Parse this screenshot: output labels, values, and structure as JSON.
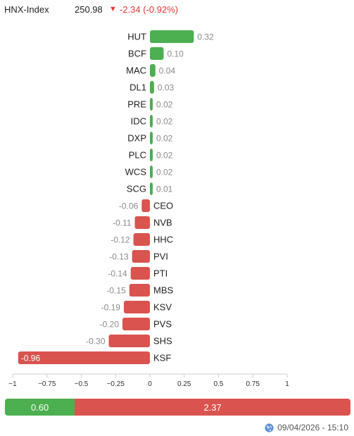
{
  "header": {
    "index_name": "HNX-Index",
    "value": "250.98",
    "arrow": "▼",
    "change": "-2.34 (-0.92%)",
    "change_color": "#e53935"
  },
  "chart_data": {
    "type": "bar",
    "orientation": "horizontal",
    "categories": [
      "HUT",
      "BCF",
      "MAC",
      "DL1",
      "PRE",
      "IDC",
      "DXP",
      "PLC",
      "WCS",
      "SCG",
      "CEO",
      "NVB",
      "HHC",
      "PVI",
      "PTI",
      "MBS",
      "KSV",
      "PVS",
      "SHS",
      "KSF"
    ],
    "values": [
      0.32,
      0.1,
      0.04,
      0.03,
      0.02,
      0.02,
      0.02,
      0.02,
      0.02,
      0.01,
      -0.06,
      -0.11,
      -0.12,
      -0.13,
      -0.14,
      -0.15,
      -0.19,
      -0.2,
      -0.3,
      -0.96
    ],
    "value_labels": [
      "0.32",
      "0.10",
      "0.04",
      "0.03",
      "0.02",
      "0.02",
      "0.02",
      "0.02",
      "0.02",
      "0.01",
      "-0.06",
      "-0.11",
      "-0.12",
      "-0.13",
      "-0.14",
      "-0.15",
      "-0.19",
      "-0.20",
      "-0.30",
      "-0.96"
    ],
    "xlim": [
      -1,
      1
    ],
    "xticks": [
      -1,
      -0.75,
      -0.5,
      -0.25,
      0,
      0.25,
      0.5,
      0.75,
      1
    ],
    "xtick_labels": [
      "−1",
      "−0.75",
      "−0.5",
      "−0.25",
      "0",
      "0.25",
      "0.5",
      "0.75",
      "1"
    ],
    "colors": {
      "positive": "#4caf50",
      "negative": "#d9534f"
    },
    "grid": false
  },
  "summary": {
    "advance_label": "0.60",
    "decline_label": "2.37",
    "advance_value": 0.6,
    "decline_value": 2.37
  },
  "footer": {
    "icon": "globe-icon",
    "timestamp": "09/04/2026 - 15:10"
  }
}
